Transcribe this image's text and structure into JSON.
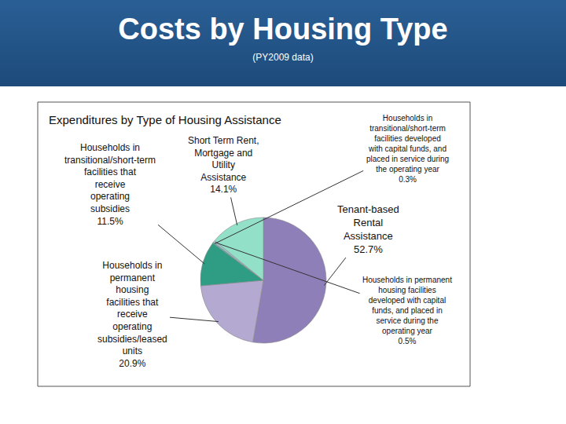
{
  "header": {
    "title": "Costs by Housing Type",
    "subtitle": "(PY2009 data)"
  },
  "chart_data": {
    "type": "pie",
    "title": "Expenditures by Type of Housing Assistance",
    "categories": [
      "Tenant-based Rental Assistance",
      "Households in permanent housing facilities that receive operating subsidies/leased units",
      "Households in transitional/short-term facilities that receive operating subsidies",
      "Households in transitional/short-term facilities developed with capital funds, and placed in service during the operating year",
      "Households in permanent housing facilities developed with capital funds, and placed in service during the operating year",
      "Short Term Rent, Mortgage and Utility Assistance"
    ],
    "values": [
      52.7,
      20.9,
      11.5,
      0.3,
      0.5,
      14.1
    ],
    "value_labels": [
      "52.7%",
      "20.9%",
      "11.5%",
      "0.3%",
      "0.5%",
      "14.1%"
    ],
    "colors": [
      "#8f7fb8",
      "#b4a9d0",
      "#2f9c84",
      "#5fb3a0",
      "#9fc4d8",
      "#93e0c8"
    ],
    "data_labels": true
  }
}
